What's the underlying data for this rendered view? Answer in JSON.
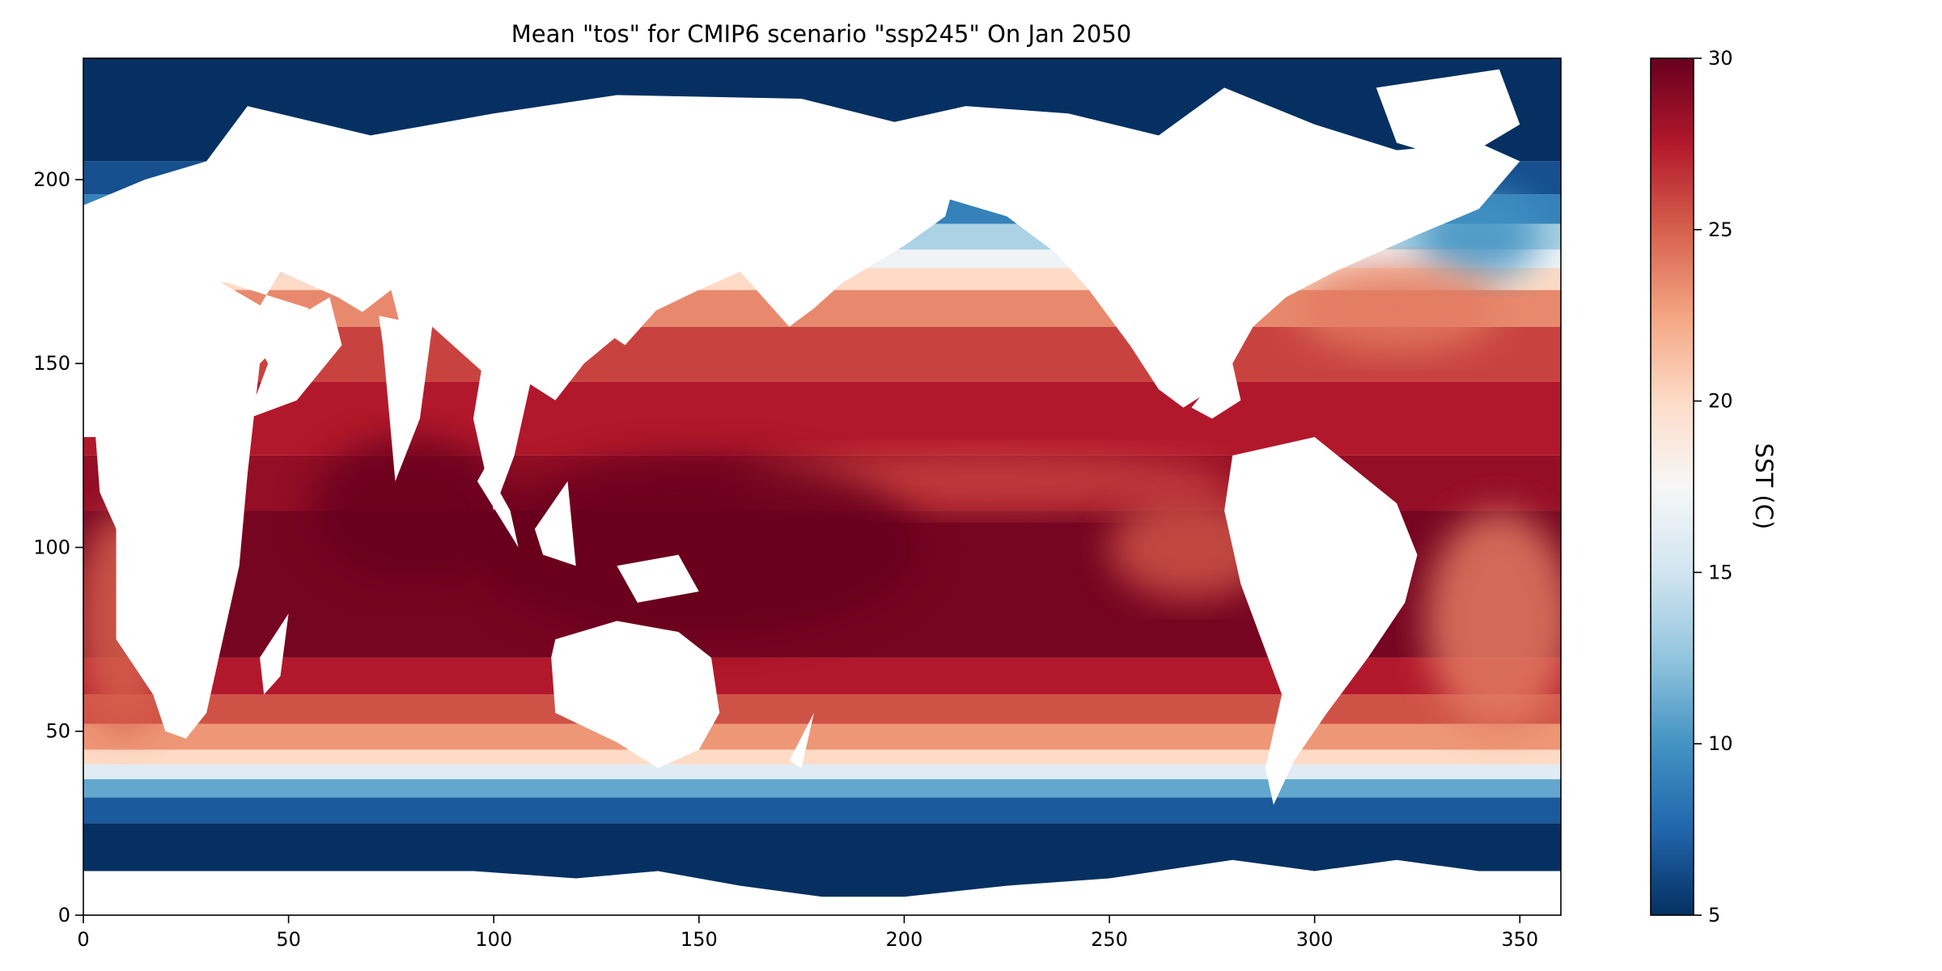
{
  "chart_data": {
    "type": "heatmap",
    "title": "Mean \"tos\" for CMIP6 scenario \"ssp245\" On  Jan 2050",
    "xlabel": "",
    "ylabel": "",
    "xlim": [
      0,
      360
    ],
    "ylim": [
      0,
      233
    ],
    "xticks": [
      0,
      50,
      100,
      150,
      200,
      250,
      300,
      350
    ],
    "yticks": [
      0,
      50,
      100,
      150,
      200
    ],
    "grid": false,
    "colormap": "RdBu_r",
    "colormap_stops": [
      "#053061",
      "#2166ac",
      "#4393c3",
      "#92c5de",
      "#d1e5f0",
      "#f7f7f7",
      "#fddbc7",
      "#f4a582",
      "#d6604d",
      "#b2182b",
      "#67001f"
    ],
    "land_color": "#ffffff",
    "colorbar": {
      "label": "SST (C)",
      "range": [
        5,
        30
      ],
      "ticks": [
        5,
        10,
        15,
        20,
        25,
        30
      ]
    }
  }
}
